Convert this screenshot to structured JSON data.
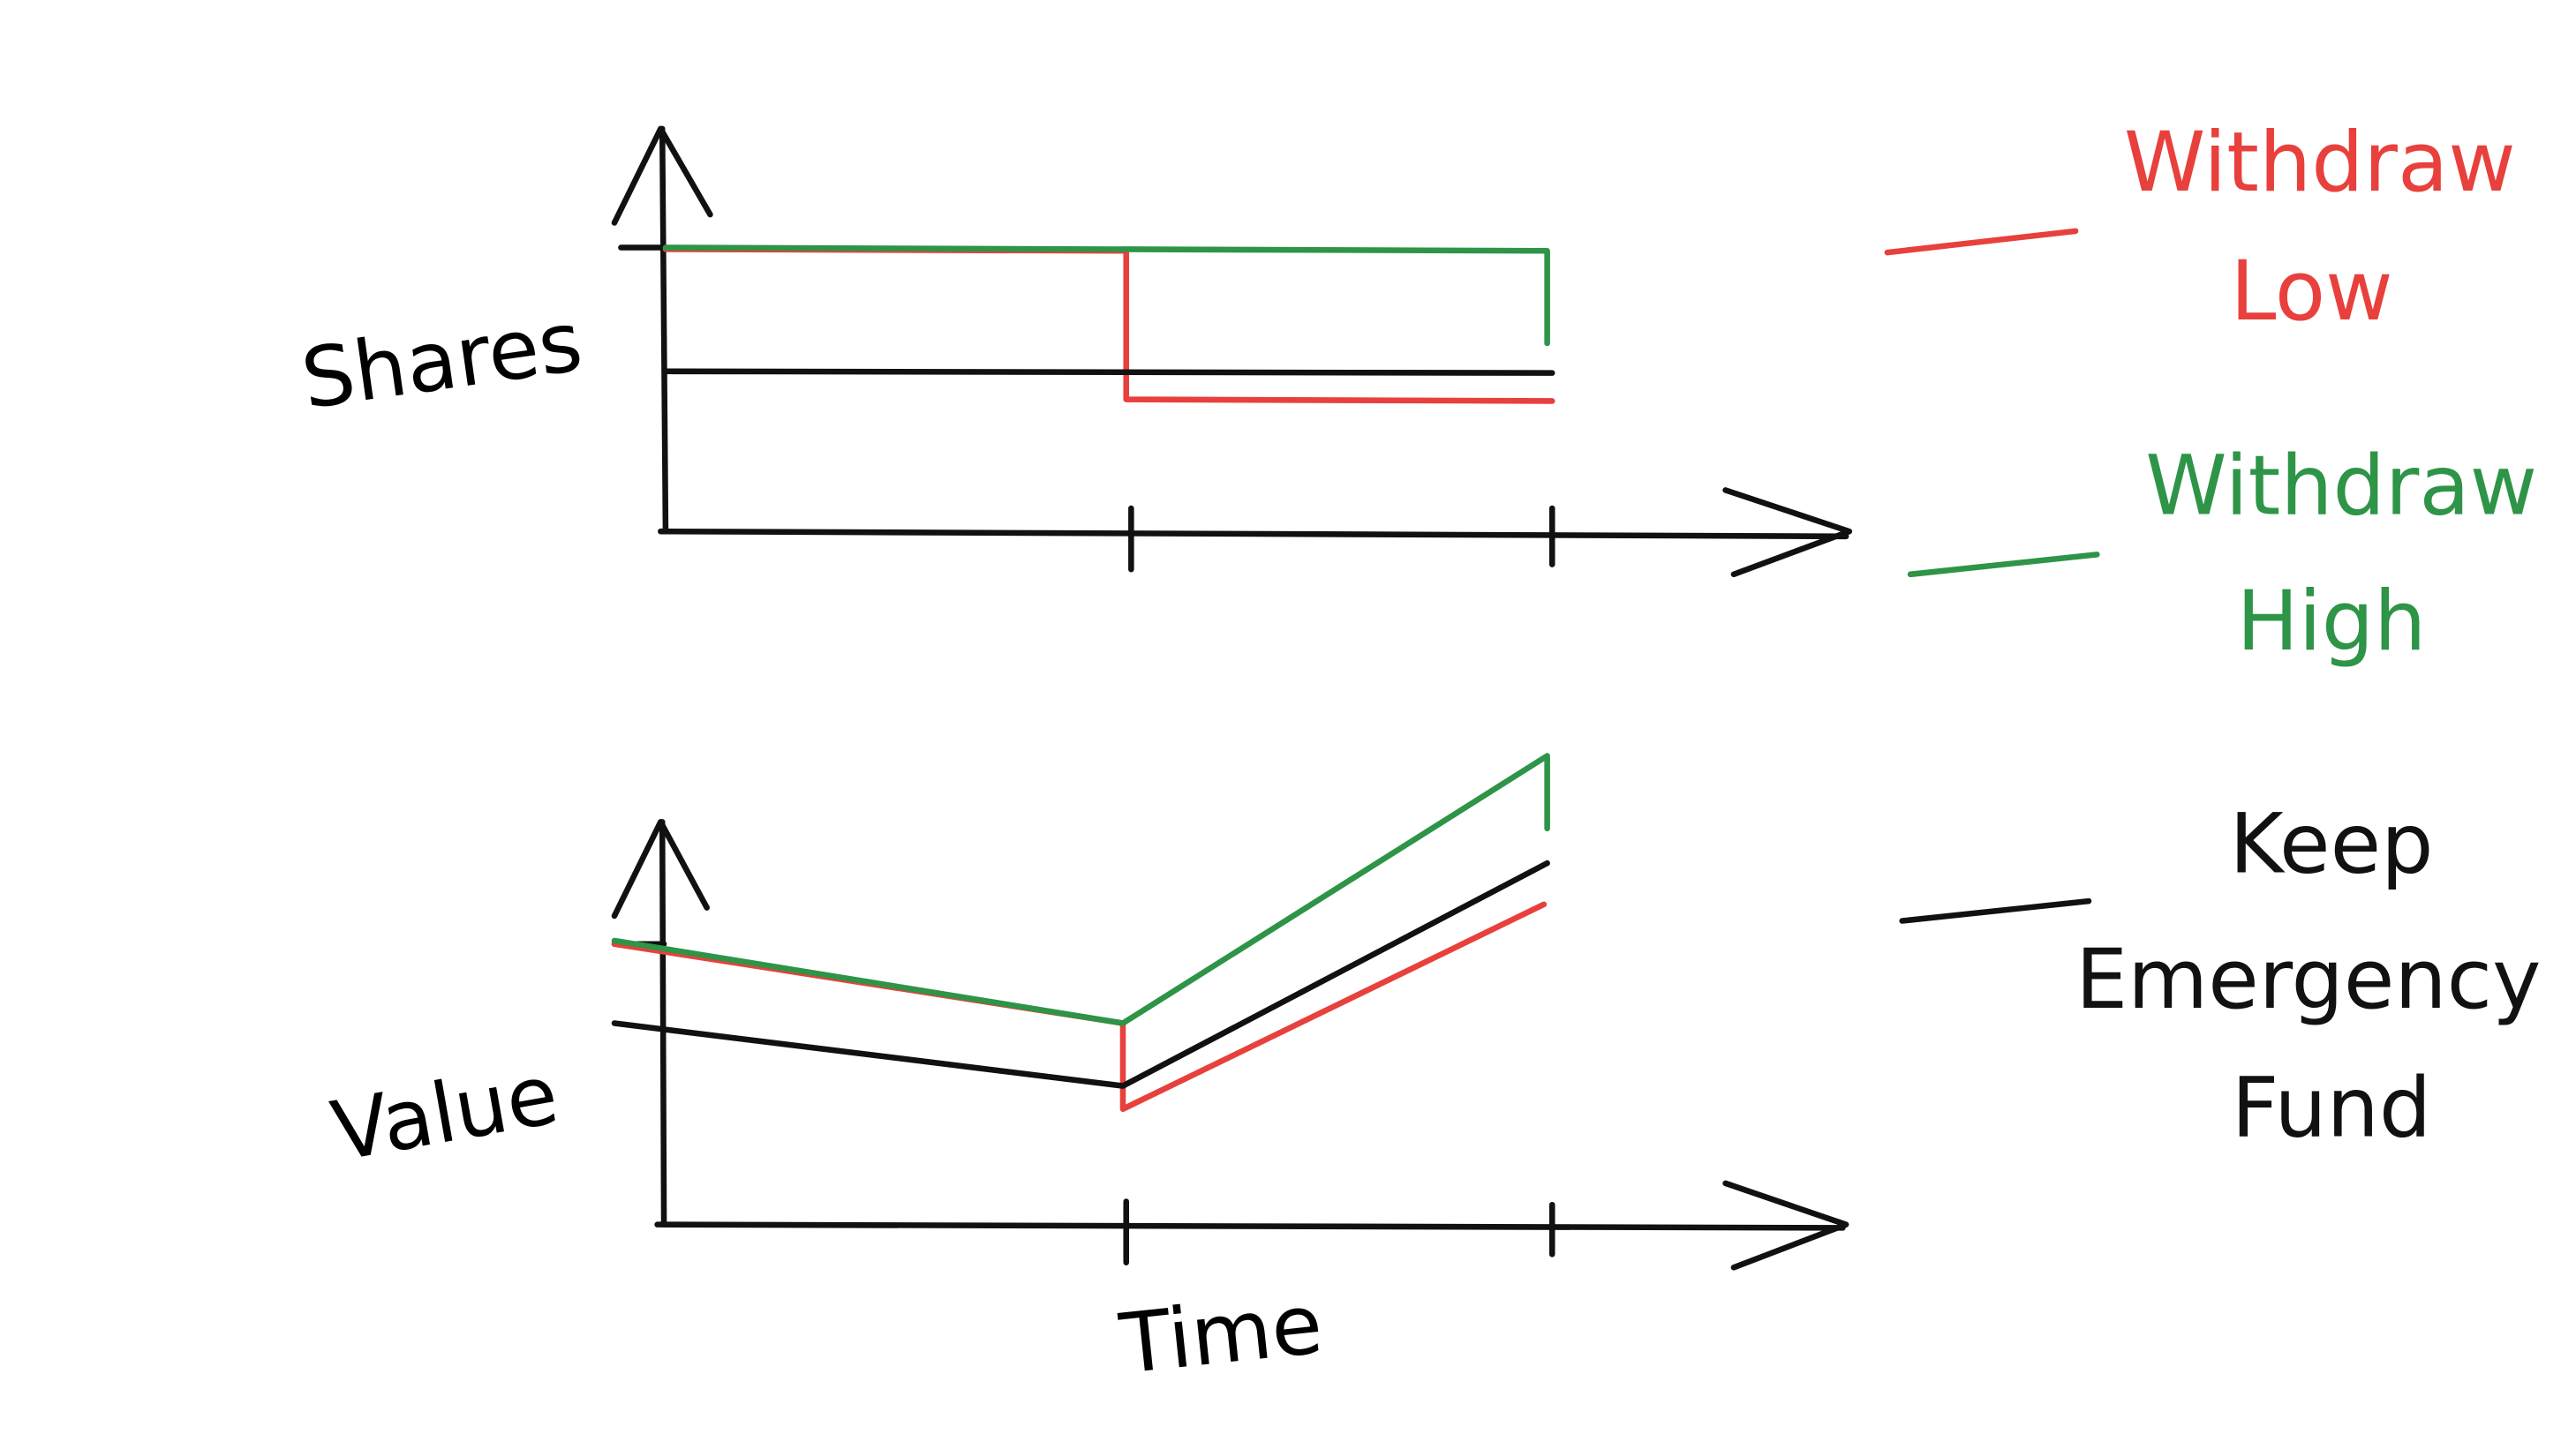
{
  "panels": [
    {
      "y_label": "Shares"
    },
    {
      "y_label": "Value",
      "x_label": "Time"
    }
  ],
  "legend": [
    {
      "lines": [
        "Withdraw",
        "Low"
      ]
    },
    {
      "lines": [
        "Withdraw",
        "High"
      ]
    },
    {
      "lines": [
        "Keep",
        "Emergency",
        "Fund"
      ]
    }
  ]
}
